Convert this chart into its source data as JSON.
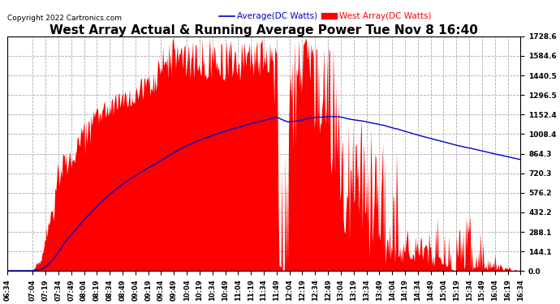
{
  "title": "West Array Actual & Running Average Power Tue Nov 8 16:40",
  "copyright": "Copyright 2022 Cartronics.com",
  "legend_avg": "Average(DC Watts)",
  "legend_west": "West Array(DC Watts)",
  "ymax": 1728.6,
  "ymin": 0.0,
  "yticks": [
    0.0,
    144.1,
    288.1,
    432.2,
    576.2,
    720.3,
    864.3,
    1008.4,
    1152.4,
    1296.5,
    1440.5,
    1584.6,
    1728.6
  ],
  "xtick_labels": [
    "06:34",
    "07:04",
    "07:19",
    "07:34",
    "07:49",
    "08:04",
    "08:19",
    "08:34",
    "08:49",
    "09:04",
    "09:19",
    "09:34",
    "09:49",
    "10:04",
    "10:19",
    "10:34",
    "10:49",
    "11:04",
    "11:19",
    "11:34",
    "11:49",
    "12:04",
    "12:19",
    "12:34",
    "12:49",
    "13:04",
    "13:19",
    "13:34",
    "13:49",
    "14:04",
    "14:19",
    "14:34",
    "14:49",
    "15:04",
    "15:19",
    "15:34",
    "15:49",
    "16:04",
    "16:19",
    "16:34"
  ],
  "area_color": "#ff0000",
  "line_color": "#0000cc",
  "background_color": "#ffffff",
  "grid_color": "#aaaaaa",
  "title_fontsize": 11,
  "copyright_fontsize": 6.5,
  "axis_label_fontsize": 6.5,
  "legend_fontsize": 7.5,
  "figwidth": 6.9,
  "figheight": 3.75,
  "dpi": 100
}
